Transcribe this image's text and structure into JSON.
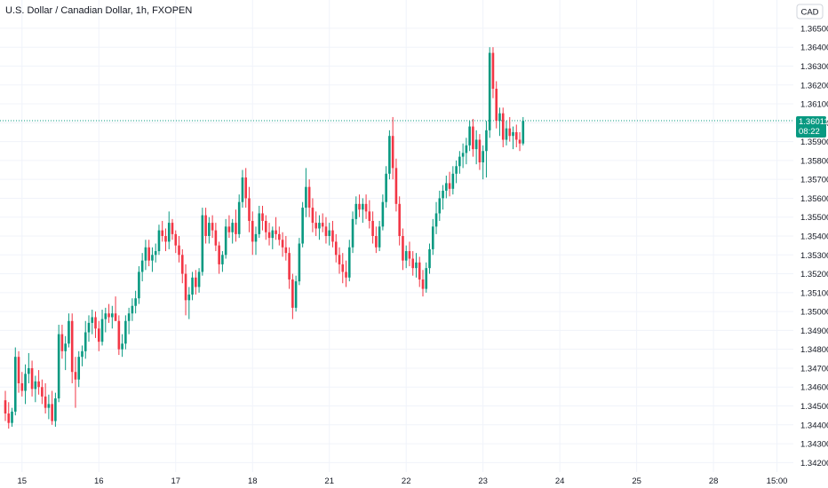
{
  "header": {
    "title": "U.S. Dollar / Canadian Dollar, 1h, FXOPEN"
  },
  "currency_label": "CAD",
  "colors": {
    "up": "#089981",
    "down": "#f23645",
    "grid": "#f0f3fa",
    "axis_text": "#131722",
    "last_price_line": "#089981"
  },
  "last_price": {
    "value_label": "1.36011",
    "countdown": "08:22",
    "value": 1.36011
  },
  "chart_data": {
    "type": "candlestick",
    "title": "U.S. Dollar / Canadian Dollar, 1h, FXOPEN",
    "ylim": [
      1.3415,
      1.3665
    ],
    "y_ticks": [
      "1.34200",
      "1.34300",
      "1.34400",
      "1.34500",
      "1.34600",
      "1.34700",
      "1.34800",
      "1.34900",
      "1.35000",
      "1.35100",
      "1.35200",
      "1.35300",
      "1.35400",
      "1.35500",
      "1.35600",
      "1.35700",
      "1.35800",
      "1.35900",
      "1.36000",
      "1.36100",
      "1.36200",
      "1.36300",
      "1.36400",
      "1.36500"
    ],
    "x_ticks": [
      {
        "label": "15",
        "bar": 5
      },
      {
        "label": "16",
        "bar": 28
      },
      {
        "label": "17",
        "bar": 51
      },
      {
        "label": "18",
        "bar": 74
      },
      {
        "label": "21",
        "bar": 97
      },
      {
        "label": "22",
        "bar": 120
      },
      {
        "label": "23",
        "bar": 143
      },
      {
        "label": "24",
        "bar": 166
      },
      {
        "label": "25",
        "bar": 189
      },
      {
        "label": "28",
        "bar": 212
      },
      {
        "label": "15:00",
        "bar": 231
      }
    ],
    "candles": [
      [
        1.3453,
        1.3458,
        1.3442,
        1.3446
      ],
      [
        1.3446,
        1.3452,
        1.3438,
        1.3441
      ],
      [
        1.3441,
        1.3449,
        1.3439,
        1.3447
      ],
      [
        1.3447,
        1.3481,
        1.3445,
        1.3476
      ],
      [
        1.3476,
        1.3479,
        1.3457,
        1.3462
      ],
      [
        1.3462,
        1.3468,
        1.3455,
        1.3458
      ],
      [
        1.3458,
        1.3472,
        1.3451,
        1.3467
      ],
      [
        1.3467,
        1.3478,
        1.3462,
        1.347
      ],
      [
        1.347,
        1.3474,
        1.3455,
        1.3459
      ],
      [
        1.3459,
        1.3466,
        1.3452,
        1.3463
      ],
      [
        1.3463,
        1.3469,
        1.3456,
        1.346
      ],
      [
        1.346,
        1.3464,
        1.3451,
        1.3455
      ],
      [
        1.3455,
        1.3462,
        1.3446,
        1.3449
      ],
      [
        1.3449,
        1.3456,
        1.3443,
        1.3451
      ],
      [
        1.3451,
        1.3458,
        1.344,
        1.3442
      ],
      [
        1.3442,
        1.3457,
        1.3439,
        1.3454
      ],
      [
        1.3454,
        1.3493,
        1.3452,
        1.3488
      ],
      [
        1.3488,
        1.3493,
        1.3475,
        1.3479
      ],
      [
        1.3479,
        1.3487,
        1.3469,
        1.3483
      ],
      [
        1.3483,
        1.3499,
        1.3481,
        1.3495
      ],
      [
        1.3495,
        1.3499,
        1.3462,
        1.3468
      ],
      [
        1.3468,
        1.3476,
        1.3449,
        1.3464
      ],
      [
        1.3464,
        1.3479,
        1.346,
        1.3476
      ],
      [
        1.3476,
        1.3482,
        1.3471,
        1.3479
      ],
      [
        1.3479,
        1.3495,
        1.3475,
        1.3489
      ],
      [
        1.3489,
        1.3498,
        1.3484,
        1.3494
      ],
      [
        1.3494,
        1.3501,
        1.3488,
        1.3497
      ],
      [
        1.3497,
        1.35,
        1.3486,
        1.3491
      ],
      [
        1.3491,
        1.3495,
        1.3479,
        1.3484
      ],
      [
        1.3484,
        1.3501,
        1.3482,
        1.3496
      ],
      [
        1.3496,
        1.3502,
        1.3489,
        1.3499
      ],
      [
        1.3499,
        1.3504,
        1.3494,
        1.3497
      ],
      [
        1.3497,
        1.3503,
        1.3491,
        1.3499
      ],
      [
        1.3499,
        1.3508,
        1.3495,
        1.3495
      ],
      [
        1.3495,
        1.3498,
        1.3477,
        1.348
      ],
      [
        1.348,
        1.3488,
        1.3476,
        1.3483
      ],
      [
        1.3483,
        1.3498,
        1.348,
        1.3495
      ],
      [
        1.3495,
        1.3502,
        1.3488,
        1.3499
      ],
      [
        1.3499,
        1.3507,
        1.3495,
        1.3503
      ],
      [
        1.3503,
        1.3511,
        1.3499,
        1.3507
      ],
      [
        1.3507,
        1.3524,
        1.3504,
        1.3521
      ],
      [
        1.3521,
        1.3531,
        1.3516,
        1.3527
      ],
      [
        1.3527,
        1.3538,
        1.3522,
        1.3534
      ],
      [
        1.3534,
        1.3538,
        1.3524,
        1.3527
      ],
      [
        1.3527,
        1.3534,
        1.3521,
        1.353
      ],
      [
        1.353,
        1.3536,
        1.3526,
        1.3532
      ],
      [
        1.3532,
        1.3546,
        1.353,
        1.3543
      ],
      [
        1.3543,
        1.3548,
        1.3537,
        1.354
      ],
      [
        1.354,
        1.3544,
        1.3532,
        1.3537
      ],
      [
        1.3537,
        1.3553,
        1.3533,
        1.3547
      ],
      [
        1.3547,
        1.3549,
        1.3538,
        1.3541
      ],
      [
        1.3541,
        1.3543,
        1.3531,
        1.3535
      ],
      [
        1.3535,
        1.354,
        1.3526,
        1.353
      ],
      [
        1.353,
        1.3533,
        1.3515,
        1.352
      ],
      [
        1.352,
        1.3525,
        1.3498,
        1.3506
      ],
      [
        1.3506,
        1.3513,
        1.3496,
        1.3509
      ],
      [
        1.3509,
        1.3521,
        1.3506,
        1.3518
      ],
      [
        1.3518,
        1.3522,
        1.3509,
        1.3513
      ],
      [
        1.3513,
        1.3523,
        1.351,
        1.3521
      ],
      [
        1.3521,
        1.3555,
        1.3519,
        1.3551
      ],
      [
        1.3551,
        1.3555,
        1.3536,
        1.354
      ],
      [
        1.354,
        1.355,
        1.3536,
        1.3547
      ],
      [
        1.3547,
        1.3551,
        1.3539,
        1.3543
      ],
      [
        1.3543,
        1.3547,
        1.3532,
        1.3535
      ],
      [
        1.3535,
        1.3537,
        1.352,
        1.3525
      ],
      [
        1.3525,
        1.3532,
        1.3521,
        1.353
      ],
      [
        1.353,
        1.3549,
        1.3528,
        1.3545
      ],
      [
        1.3545,
        1.3551,
        1.3539,
        1.3542
      ],
      [
        1.3542,
        1.3549,
        1.3536,
        1.3547
      ],
      [
        1.3547,
        1.3554,
        1.3537,
        1.3541
      ],
      [
        1.3541,
        1.3562,
        1.3539,
        1.3558
      ],
      [
        1.3558,
        1.3575,
        1.3555,
        1.3571
      ],
      [
        1.3571,
        1.3576,
        1.3555,
        1.356
      ],
      [
        1.356,
        1.3566,
        1.3542,
        1.3548
      ],
      [
        1.3548,
        1.3553,
        1.353,
        1.3537
      ],
      [
        1.3537,
        1.3545,
        1.353,
        1.3541
      ],
      [
        1.3541,
        1.3556,
        1.3539,
        1.3552
      ],
      [
        1.3552,
        1.3556,
        1.3543,
        1.3548
      ],
      [
        1.3548,
        1.3551,
        1.3538,
        1.3542
      ],
      [
        1.3542,
        1.3547,
        1.3535,
        1.3539
      ],
      [
        1.3539,
        1.3545,
        1.3533,
        1.3543
      ],
      [
        1.3543,
        1.355,
        1.3538,
        1.3541
      ],
      [
        1.3541,
        1.3545,
        1.3535,
        1.3538
      ],
      [
        1.3538,
        1.3542,
        1.3529,
        1.3534
      ],
      [
        1.3534,
        1.354,
        1.3527,
        1.3531
      ],
      [
        1.3531,
        1.3534,
        1.3512,
        1.3517
      ],
      [
        1.3517,
        1.352,
        1.3496,
        1.3502
      ],
      [
        1.3502,
        1.3519,
        1.35,
        1.3516
      ],
      [
        1.3516,
        1.3539,
        1.3514,
        1.3536
      ],
      [
        1.3536,
        1.3558,
        1.3534,
        1.3555
      ],
      [
        1.3555,
        1.3576,
        1.355,
        1.3566
      ],
      [
        1.3566,
        1.357,
        1.355,
        1.3555
      ],
      [
        1.3555,
        1.356,
        1.3542,
        1.3547
      ],
      [
        1.3547,
        1.3553,
        1.354,
        1.3544
      ],
      [
        1.3544,
        1.3551,
        1.3538,
        1.3547
      ],
      [
        1.3547,
        1.3552,
        1.3542,
        1.3545
      ],
      [
        1.3545,
        1.355,
        1.3536,
        1.354
      ],
      [
        1.354,
        1.3547,
        1.3535,
        1.3543
      ],
      [
        1.3543,
        1.3548,
        1.3534,
        1.3537
      ],
      [
        1.3537,
        1.3541,
        1.3526,
        1.353
      ],
      [
        1.353,
        1.3534,
        1.352,
        1.3525
      ],
      [
        1.3525,
        1.3531,
        1.3515,
        1.3521
      ],
      [
        1.3521,
        1.3527,
        1.3513,
        1.3518
      ],
      [
        1.3518,
        1.3538,
        1.3516,
        1.3534
      ],
      [
        1.3534,
        1.3553,
        1.3531,
        1.3549
      ],
      [
        1.3549,
        1.3561,
        1.3546,
        1.3557
      ],
      [
        1.3557,
        1.3562,
        1.355,
        1.3554
      ],
      [
        1.3554,
        1.356,
        1.3547,
        1.3557
      ],
      [
        1.3557,
        1.3562,
        1.3549,
        1.3553
      ],
      [
        1.3553,
        1.3559,
        1.3544,
        1.3548
      ],
      [
        1.3548,
        1.3553,
        1.3536,
        1.354
      ],
      [
        1.354,
        1.3545,
        1.3531,
        1.3534
      ],
      [
        1.3534,
        1.3548,
        1.3532,
        1.3545
      ],
      [
        1.3545,
        1.3562,
        1.3543,
        1.3558
      ],
      [
        1.3558,
        1.3577,
        1.3555,
        1.3573
      ],
      [
        1.3573,
        1.3596,
        1.357,
        1.3593
      ],
      [
        1.3593,
        1.3603,
        1.357,
        1.3576
      ],
      [
        1.3576,
        1.3581,
        1.3553,
        1.3557
      ],
      [
        1.3557,
        1.3561,
        1.3535,
        1.354
      ],
      [
        1.354,
        1.3544,
        1.3522,
        1.3527
      ],
      [
        1.3527,
        1.3535,
        1.3523,
        1.3532
      ],
      [
        1.3532,
        1.3537,
        1.3524,
        1.3528
      ],
      [
        1.3528,
        1.3532,
        1.3519,
        1.3523
      ],
      [
        1.3523,
        1.3531,
        1.3518,
        1.3526
      ],
      [
        1.3526,
        1.3529,
        1.3513,
        1.3517
      ],
      [
        1.3517,
        1.3522,
        1.3508,
        1.3512
      ],
      [
        1.3512,
        1.3526,
        1.351,
        1.3523
      ],
      [
        1.3523,
        1.3536,
        1.352,
        1.3533
      ],
      [
        1.3533,
        1.3549,
        1.353,
        1.3545
      ],
      [
        1.3545,
        1.3558,
        1.3541,
        1.3552
      ],
      [
        1.3552,
        1.3564,
        1.3548,
        1.356
      ],
      [
        1.356,
        1.3567,
        1.3554,
        1.3564
      ],
      [
        1.3564,
        1.3572,
        1.356,
        1.3568
      ],
      [
        1.3568,
        1.3574,
        1.3561,
        1.3565
      ],
      [
        1.3565,
        1.3577,
        1.3562,
        1.3573
      ],
      [
        1.3573,
        1.358,
        1.3568,
        1.3577
      ],
      [
        1.3577,
        1.3585,
        1.3573,
        1.3582
      ],
      [
        1.3582,
        1.3589,
        1.3576,
        1.3584
      ],
      [
        1.3584,
        1.3592,
        1.3578,
        1.3588
      ],
      [
        1.3588,
        1.3601,
        1.3585,
        1.3598
      ],
      [
        1.3598,
        1.3602,
        1.3582,
        1.3586
      ],
      [
        1.3586,
        1.3596,
        1.3578,
        1.3591
      ],
      [
        1.3591,
        1.3594,
        1.3575,
        1.3579
      ],
      [
        1.3579,
        1.3588,
        1.357,
        1.3585
      ],
      [
        1.3585,
        1.3601,
        1.3571,
        1.3596
      ],
      [
        1.3596,
        1.364,
        1.3592,
        1.3637
      ],
      [
        1.3637,
        1.364,
        1.3613,
        1.3618
      ],
      [
        1.3618,
        1.3622,
        1.3597,
        1.3601
      ],
      [
        1.3601,
        1.3608,
        1.3593,
        1.3605
      ],
      [
        1.3605,
        1.3608,
        1.3587,
        1.3591
      ],
      [
        1.3591,
        1.3601,
        1.3588,
        1.3597
      ],
      [
        1.3597,
        1.3603,
        1.359,
        1.3593
      ],
      [
        1.3593,
        1.3598,
        1.3586,
        1.3595
      ],
      [
        1.3595,
        1.3599,
        1.3587,
        1.3591
      ],
      [
        1.3591,
        1.3595,
        1.3585,
        1.3589
      ],
      [
        1.3589,
        1.3603,
        1.3588,
        1.3601
      ]
    ]
  }
}
